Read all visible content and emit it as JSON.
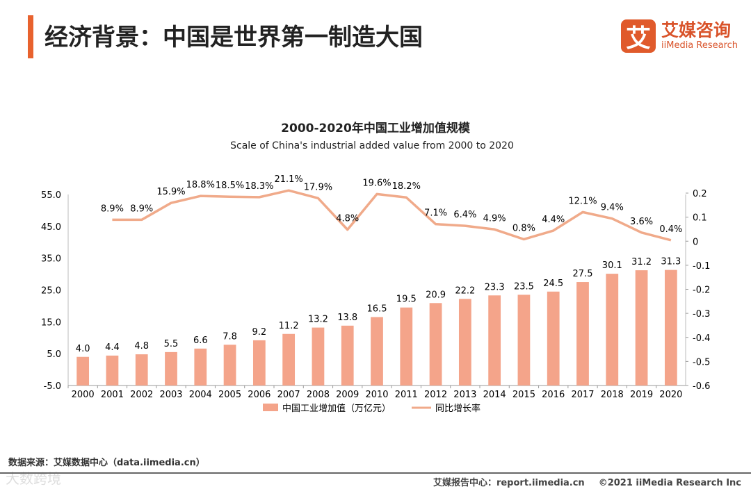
{
  "header": {
    "title": "经济背景：中国是世界第一制造大国",
    "logo_mark": "艾",
    "logo_cn": "艾媒咨询",
    "logo_en": "iiMedia Research"
  },
  "chart_data": {
    "type": "bar+line",
    "title": "2000-2020年中国工业增加值规模",
    "subtitle": "Scale of China's industrial added value from 2000 to 2020",
    "categories": [
      "2000",
      "2001",
      "2002",
      "2003",
      "2004",
      "2005",
      "2006",
      "2007",
      "2008",
      "2009",
      "2010",
      "2011",
      "2012",
      "2013",
      "2014",
      "2015",
      "2016",
      "2017",
      "2018",
      "2019",
      "2020"
    ],
    "series": [
      {
        "name": "中国工业增加值（万亿元）",
        "type": "bar",
        "axis": "left",
        "color": "#f4a48a",
        "values": [
          4.0,
          4.4,
          4.8,
          5.5,
          6.6,
          7.8,
          9.2,
          11.2,
          13.2,
          13.8,
          16.5,
          19.5,
          20.9,
          22.2,
          23.3,
          23.5,
          24.5,
          27.5,
          30.1,
          31.2,
          31.3
        ],
        "labels": [
          "4.0",
          "4.4",
          "4.8",
          "5.5",
          "6.6",
          "7.8",
          "9.2",
          "11.2",
          "13.2",
          "13.8",
          "16.5",
          "19.5",
          "20.9",
          "22.2",
          "23.3",
          "23.5",
          "24.5",
          "27.5",
          "30.1",
          "31.2",
          "31.3"
        ]
      },
      {
        "name": "同比增长率",
        "type": "line",
        "axis": "right",
        "color": "#f0aa8a",
        "values": [
          null,
          0.089,
          0.089,
          0.159,
          0.188,
          0.185,
          0.183,
          0.211,
          0.179,
          0.048,
          0.196,
          0.182,
          0.071,
          0.064,
          0.049,
          0.008,
          0.044,
          0.121,
          0.094,
          0.036,
          0.004
        ],
        "labels": [
          null,
          "8.9%",
          "8.9%",
          "15.9%",
          "18.8%",
          "18.5%",
          "18.3%",
          "21.1%",
          "17.9%",
          "4.8%",
          "19.6%",
          "18.2%",
          "7.1%",
          "6.4%",
          "4.9%",
          "0.8%",
          "4.4%",
          "12.1%",
          "9.4%",
          "3.6%",
          "0.4%"
        ]
      }
    ],
    "y_left": {
      "ticks": [
        "55.0",
        "45.0",
        "35.0",
        "25.0",
        "15.0",
        "5.0",
        "-5.0"
      ],
      "range": [
        -5,
        55
      ]
    },
    "y_right": {
      "ticks": [
        "0.2",
        "0.1",
        "0",
        "-0.1",
        "-0.2",
        "-0.3",
        "-0.4",
        "-0.5",
        "-0.6"
      ],
      "range": [
        -0.6,
        0.2
      ]
    },
    "legend_position": "bottom"
  },
  "footer": {
    "source": "数据来源：艾媒数据中心（data.iimedia.cn）",
    "report": "艾媒报告中心：report.iimedia.cn",
    "copyright": "©2021  iiMedia Research  Inc",
    "watermark": "大数跨境"
  }
}
